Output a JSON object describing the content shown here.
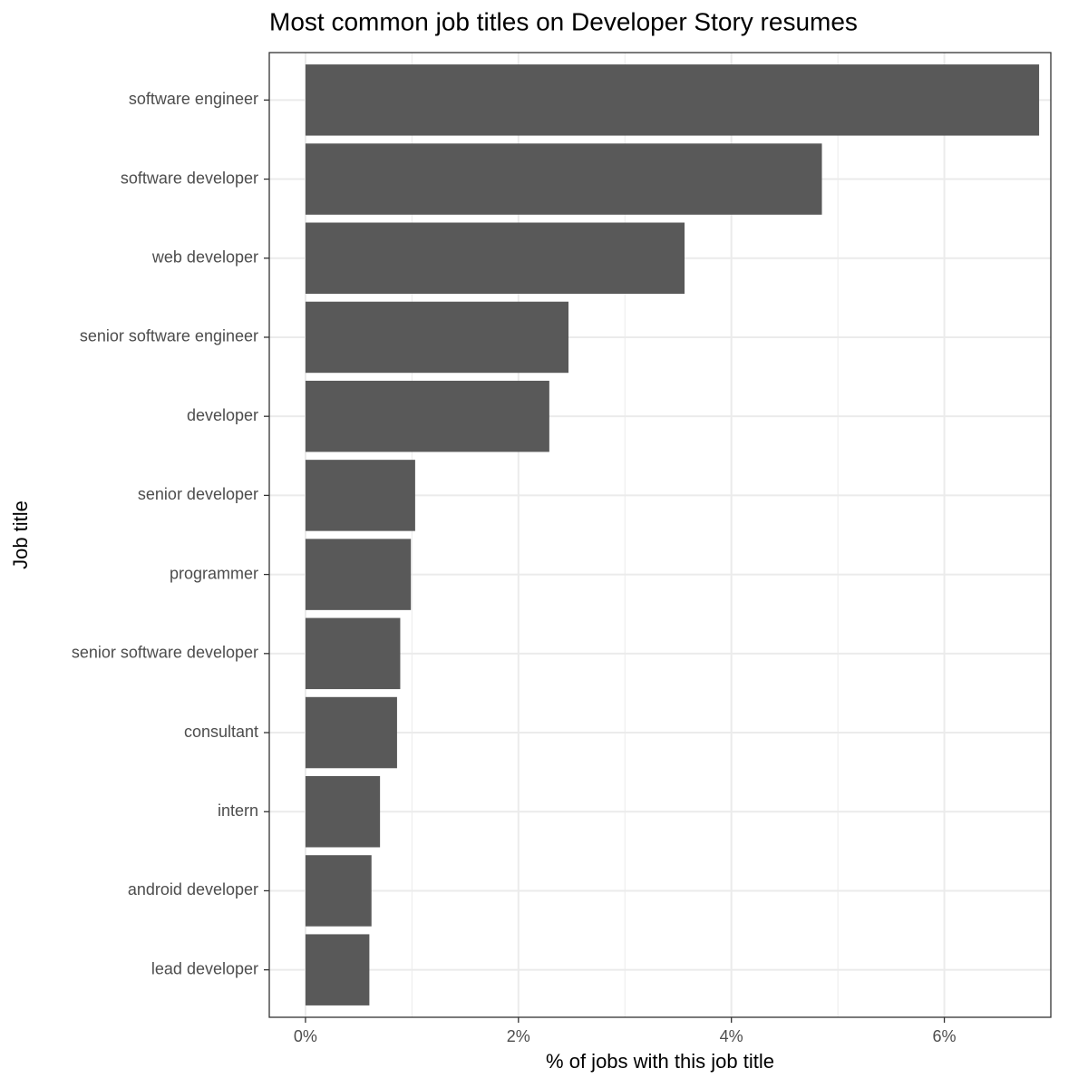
{
  "chart_data": {
    "type": "bar",
    "orientation": "horizontal",
    "title": "Most common job titles on Developer Story resumes",
    "x_label": "% of jobs with this job title",
    "y_label": "Job title",
    "categories": [
      "software engineer",
      "software developer",
      "web developer",
      "senior software engineer",
      "developer",
      "senior developer",
      "programmer",
      "senior software developer",
      "consultant",
      "intern",
      "android developer",
      "lead developer"
    ],
    "values": [
      6.89,
      4.85,
      3.56,
      2.47,
      2.29,
      1.03,
      0.99,
      0.89,
      0.86,
      0.7,
      0.62,
      0.6
    ],
    "color": "#595959",
    "xlim": [
      -0.34,
      7.0
    ],
    "xticks": [
      {
        "value": 0,
        "label": "0%"
      },
      {
        "value": 2,
        "label": "2%"
      },
      {
        "value": 4,
        "label": "4%"
      },
      {
        "value": 6,
        "label": "6%"
      }
    ],
    "grid": true
  }
}
